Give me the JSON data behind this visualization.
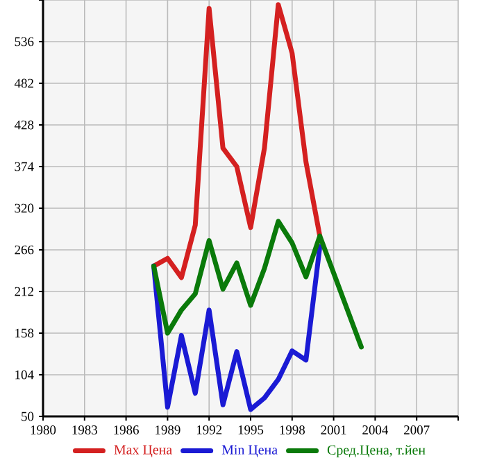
{
  "chart_data": {
    "type": "line",
    "xlim": [
      1980,
      2010
    ],
    "xticks": [
      1980,
      1983,
      1986,
      1989,
      1992,
      1995,
      1998,
      2001,
      2004,
      2007,
      {
        "value": 2010,
        "label": null
      }
    ],
    "ylim": [
      50,
      590
    ],
    "yticks": [
      50,
      104,
      158,
      212,
      266,
      320,
      374,
      428,
      482,
      536,
      {
        "value": 590,
        "label": null
      }
    ],
    "grid": true,
    "legend": "bottom",
    "marker": "none",
    "line_style": "solid",
    "series": [
      {
        "name": "Max Цена",
        "color": "#d42020",
        "x": [
          1988,
          1989,
          1990,
          1991,
          1992,
          1993,
          1994,
          1995,
          1996,
          1997,
          1998,
          1999,
          2000
        ],
        "values": [
          245,
          255,
          230,
          298,
          579,
          398,
          374,
          295,
          398,
          584,
          521,
          380,
          284
        ]
      },
      {
        "name": "Min Цена",
        "color": "#1a1ad4",
        "x": [
          1988,
          1989,
          1990,
          1991,
          1992,
          1993,
          1994,
          1995,
          1996,
          1997,
          1998,
          1999,
          2000
        ],
        "values": [
          245,
          62,
          155,
          80,
          188,
          65,
          134,
          59,
          74,
          98,
          135,
          123,
          270
        ]
      },
      {
        "name": "Сред.Цена, т.йен",
        "color": "#0a7a0a",
        "x": [
          1988,
          1989,
          1990,
          1991,
          1992,
          1993,
          1994,
          1995,
          1996,
          1997,
          1998,
          1999,
          2000,
          2003
        ],
        "values": [
          245,
          158,
          188,
          209,
          278,
          215,
          249,
          194,
          242,
          303,
          275,
          231,
          284,
          140
        ]
      }
    ]
  }
}
